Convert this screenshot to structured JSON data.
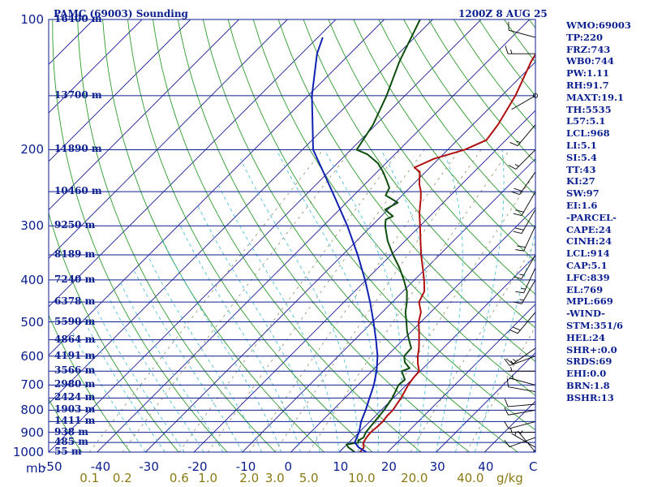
{
  "header": {
    "station": "PAMC (69003) Sounding",
    "time": "1200Z  8 AUG 25"
  },
  "units": {
    "pressure": "mb",
    "mixing_ratio": "g/kg"
  },
  "colors": {
    "isobar": "#0b1f8f",
    "isotherm": "#1a1a9a",
    "dry_adiabat": "#2e9a2e",
    "moist_adiabat": "#4cc2d8",
    "mixing_ratio": "#9a9a7a",
    "temperature": "#b01010",
    "dewpoint": "#0d4d0d",
    "parcel": "#1020b0",
    "label": "#0b1f8f",
    "mr_label": "#8a7a14"
  },
  "indices": [
    "WMO:69003",
    "TP:220",
    "FRZ:743",
    "WB0:744",
    "PW:1.11",
    "RH:91.7",
    "MAXT:19.1",
    "TH:5535",
    "L57:5.1",
    "LCL:968",
    "LI:5.1",
    "SI:5.4",
    "TT:43",
    "KI:27",
    "SW:97",
    "EI:1.6",
    "-PARCEL-",
    "CAPE:24",
    "CINH:24",
    "LCL:914",
    "CAP:5.1",
    "LFC:839",
    "EL:769",
    "MPL:669",
    "-WIND-",
    "STM:351/6",
    "HEL:24",
    "SHR+:0.0",
    "SRDS:69",
    "EHI:0.0",
    "BRN:1.8",
    "BSHR:13"
  ],
  "chart_data": {
    "type": "skew-t",
    "title": "PAMC (69003) Sounding",
    "time": "1200Z  8 AUG 25",
    "x_axis": {
      "label": "C",
      "range": [
        -50,
        50
      ],
      "ticks": [
        -50,
        -40,
        -30,
        -20,
        -10,
        0,
        10,
        20,
        30,
        40
      ]
    },
    "y_axis": {
      "label": "mb",
      "range": [
        1000,
        100
      ],
      "scale": "log",
      "ticks": [
        100,
        200,
        300,
        400,
        500,
        600,
        700,
        800,
        900,
        1000
      ]
    },
    "mixing_ratio_labels": [
      "0.1",
      "0.2",
      "0.6",
      "1.0",
      "2.0",
      "3.0",
      "5.0",
      "10.0",
      "20.0",
      "40.0"
    ],
    "mixing_ratio_values": [
      0.1,
      0.2,
      0.6,
      1.0,
      2.0,
      3.0,
      5.0,
      10.0,
      20.0,
      40.0
    ],
    "height_labels": [
      {
        "p": 100,
        "text": "16400 m"
      },
      {
        "p": 150,
        "text": "13700 m"
      },
      {
        "p": 200,
        "text": "11890 m"
      },
      {
        "p": 250,
        "text": "10460 m"
      },
      {
        "p": 300,
        "text": "9250 m"
      },
      {
        "p": 350,
        "text": "8189 m"
      },
      {
        "p": 400,
        "text": "7240 m"
      },
      {
        "p": 450,
        "text": "6378 m"
      },
      {
        "p": 500,
        "text": "5590 m"
      },
      {
        "p": 550,
        "text": "4864 m"
      },
      {
        "p": 600,
        "text": "4191 m"
      },
      {
        "p": 650,
        "text": "3566 m"
      },
      {
        "p": 700,
        "text": "2980 m"
      },
      {
        "p": 750,
        "text": "2424 m"
      },
      {
        "p": 800,
        "text": "1903 m"
      },
      {
        "p": 850,
        "text": "1411 m"
      },
      {
        "p": 900,
        "text": "938 m"
      },
      {
        "p": 950,
        "text": "485 m"
      },
      {
        "p": 1000,
        "text": "55 m"
      }
    ],
    "series": [
      {
        "name": "temperature",
        "points": [
          [
            1000,
            14.3
          ],
          [
            975,
            14.1
          ],
          [
            950,
            13.0
          ],
          [
            925,
            12.6
          ],
          [
            900,
            12.4
          ],
          [
            875,
            12.6
          ],
          [
            850,
            12.7
          ],
          [
            825,
            12.4
          ],
          [
            800,
            12.4
          ],
          [
            775,
            12.0
          ],
          [
            750,
            11.6
          ],
          [
            725,
            11.0
          ],
          [
            700,
            10.4
          ],
          [
            675,
            10.0
          ],
          [
            650,
            9.8
          ],
          [
            625,
            8.0
          ],
          [
            600,
            6.4
          ],
          [
            575,
            5.0
          ],
          [
            550,
            3.3
          ],
          [
            525,
            1.5
          ],
          [
            500,
            -0.5
          ],
          [
            475,
            -2.0
          ],
          [
            450,
            -4.5
          ],
          [
            425,
            -5.6
          ],
          [
            400,
            -8.0
          ],
          [
            375,
            -10.8
          ],
          [
            350,
            -13.8
          ],
          [
            325,
            -16.8
          ],
          [
            300,
            -20.0
          ],
          [
            280,
            -22.8
          ],
          [
            260,
            -25.4
          ],
          [
            250,
            -26.9
          ],
          [
            240,
            -28.8
          ],
          [
            225,
            -31.2
          ],
          [
            220,
            -33.2
          ],
          [
            210,
            -31.0
          ],
          [
            200,
            -26.5
          ],
          [
            190,
            -24.0
          ],
          [
            175,
            -24.8
          ],
          [
            150,
            -27.2
          ],
          [
            125,
            -31.0
          ],
          [
            105,
            -33.6
          ],
          [
            100,
            -34.2
          ]
        ]
      },
      {
        "name": "dewpoint",
        "points": [
          [
            1000,
            13.2
          ],
          [
            975,
            10.9
          ],
          [
            960,
            9.9
          ],
          [
            950,
            12.0
          ],
          [
            940,
            11.5
          ],
          [
            925,
            12.0
          ],
          [
            900,
            11.4
          ],
          [
            850,
            11.0
          ],
          [
            800,
            10.6
          ],
          [
            750,
            9.8
          ],
          [
            700,
            8.4
          ],
          [
            680,
            8.6
          ],
          [
            650,
            6.2
          ],
          [
            640,
            7.2
          ],
          [
            620,
            5.0
          ],
          [
            600,
            3.6
          ],
          [
            575,
            3.4
          ],
          [
            550,
            1.2
          ],
          [
            525,
            -1.0
          ],
          [
            500,
            -3.0
          ],
          [
            475,
            -5.2
          ],
          [
            450,
            -7.0
          ],
          [
            425,
            -9.2
          ],
          [
            400,
            -12.2
          ],
          [
            375,
            -15.6
          ],
          [
            350,
            -19.6
          ],
          [
            325,
            -23.6
          ],
          [
            300,
            -27.2
          ],
          [
            290,
            -28.4
          ],
          [
            285,
            -27.6
          ],
          [
            275,
            -30.6
          ],
          [
            265,
            -29.4
          ],
          [
            255,
            -33.4
          ],
          [
            245,
            -34.2
          ],
          [
            235,
            -36.4
          ],
          [
            225,
            -38.8
          ],
          [
            215,
            -41.6
          ],
          [
            205,
            -45.6
          ],
          [
            200,
            -48.8
          ],
          [
            175,
            -50.6
          ],
          [
            150,
            -53.8
          ],
          [
            125,
            -58.2
          ],
          [
            100,
            -62.6
          ]
        ]
      },
      {
        "name": "parcel",
        "points": [
          [
            1000,
            15.6
          ],
          [
            975,
            13.0
          ],
          [
            950,
            11.2
          ],
          [
            925,
            10.6
          ],
          [
            900,
            10.0
          ],
          [
            850,
            8.2
          ],
          [
            800,
            6.8
          ],
          [
            750,
            5.1
          ],
          [
            700,
            3.3
          ],
          [
            650,
            1.0
          ],
          [
            600,
            -1.9
          ],
          [
            550,
            -5.6
          ],
          [
            500,
            -9.8
          ],
          [
            450,
            -14.6
          ],
          [
            400,
            -20.2
          ],
          [
            350,
            -26.9
          ],
          [
            300,
            -35.0
          ],
          [
            250,
            -45.2
          ],
          [
            200,
            -57.8
          ],
          [
            150,
            -69.2
          ],
          [
            120,
            -76.8
          ],
          [
            110,
            -79.0
          ]
        ]
      }
    ],
    "wind_barbs": [
      {
        "p": 1000,
        "dir": 320,
        "spd": 5
      },
      {
        "p": 975,
        "dir": 300,
        "spd": 5
      },
      {
        "p": 925,
        "dir": 250,
        "spd": 10
      },
      {
        "p": 900,
        "dir": 270,
        "spd": 5
      },
      {
        "p": 850,
        "dir": 255,
        "spd": 10
      },
      {
        "p": 800,
        "dir": 260,
        "spd": 10
      },
      {
        "p": 775,
        "dir": 265,
        "spd": 10
      },
      {
        "p": 725,
        "dir": 280,
        "spd": 10
      },
      {
        "p": 700,
        "dir": 285,
        "spd": 5
      },
      {
        "p": 650,
        "dir": 270,
        "spd": 5
      },
      {
        "p": 600,
        "dir": 250,
        "spd": 15
      },
      {
        "p": 575,
        "dir": 235,
        "spd": 15
      },
      {
        "p": 475,
        "dir": 220,
        "spd": 20
      },
      {
        "p": 400,
        "dir": 210,
        "spd": 15
      },
      {
        "p": 375,
        "dir": 205,
        "spd": 15
      },
      {
        "p": 350,
        "dir": 210,
        "spd": 15
      },
      {
        "p": 300,
        "dir": 205,
        "spd": 20
      },
      {
        "p": 275,
        "dir": 210,
        "spd": 20
      },
      {
        "p": 250,
        "dir": 210,
        "spd": 20
      },
      {
        "p": 225,
        "dir": 215,
        "spd": 20
      },
      {
        "p": 200,
        "dir": 225,
        "spd": 15
      },
      {
        "p": 175,
        "dir": 220,
        "spd": 15
      },
      {
        "p": 150,
        "dir": 240,
        "spd": 0
      },
      {
        "p": 120,
        "dir": 270,
        "spd": 15
      },
      {
        "p": 110,
        "dir": 285,
        "spd": 10
      }
    ],
    "legend": "none"
  }
}
